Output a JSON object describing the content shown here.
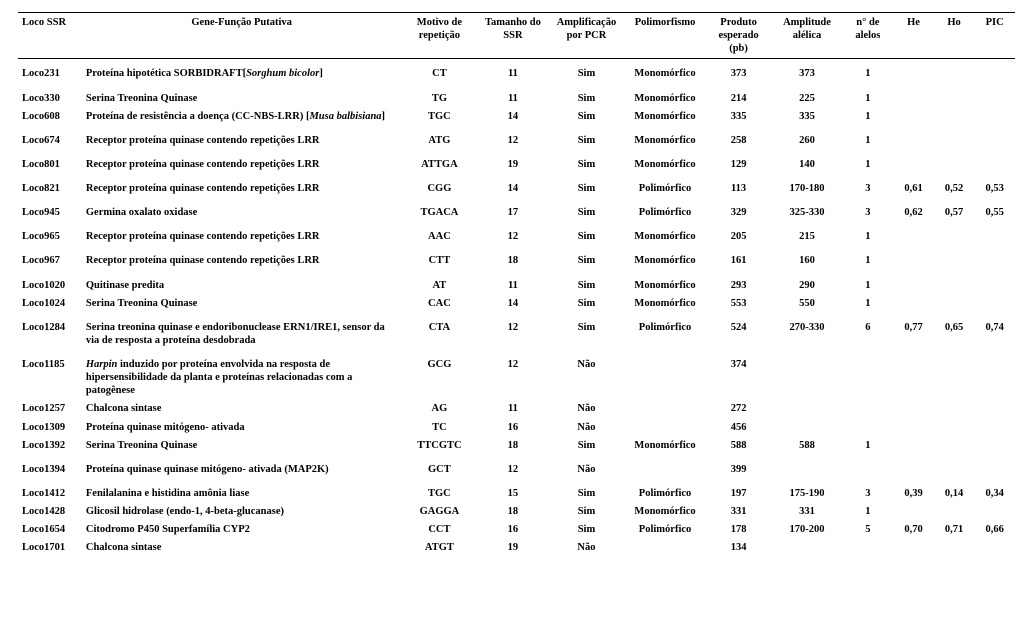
{
  "headers": {
    "loco": "Loco SSR",
    "gene": "Gene-Função Putativa",
    "motivo": "Motivo de repetição",
    "tamanho": "Tamanho do SSR",
    "amplif": "Amplificação por PCR",
    "polimorf": "Polimorfismo",
    "produto": "Produto esperado (pb)",
    "amplitude": "Amplitude alélica",
    "nalelos": "n° de alelos",
    "he": "He",
    "ho": "Ho",
    "pic": "PIC"
  },
  "rows": [
    {
      "loco": "Loco231",
      "gene_html": "Proteína hipotética SORBIDRAFT[<span class='ital'>Sorghum bicolor</span>]",
      "motivo": "CT",
      "tamanho": "11",
      "amplif": "Sim",
      "polimorf": "Monomórfico",
      "produto": "373",
      "amplitude": "373",
      "nalelos": "1",
      "he": "",
      "ho": "",
      "pic": "",
      "spaced": true
    },
    {
      "loco": "Loco330",
      "gene_html": "Serina Treonina Quinase",
      "motivo": "TG",
      "tamanho": "11",
      "amplif": "Sim",
      "polimorf": "Monomórfico",
      "produto": "214",
      "amplitude": "225",
      "nalelos": "1",
      "he": "",
      "ho": "",
      "pic": "",
      "spaced": true
    },
    {
      "loco": "Loco608",
      "gene_html": "Proteína de resistência a doença (CC-NBS-LRR) [<span class='ital'>Musa balbisiana</span>]",
      "motivo": "TGC",
      "tamanho": "14",
      "amplif": "Sim",
      "polimorf": "Monomórfico",
      "produto": "335",
      "amplitude": "335",
      "nalelos": "1",
      "he": "",
      "ho": "",
      "pic": ""
    },
    {
      "loco": "Loco674",
      "gene_html": "Receptor proteína quinase contendo repetições LRR",
      "motivo": "ATG",
      "tamanho": "12",
      "amplif": "Sim",
      "polimorf": "Monomórfico",
      "produto": "258",
      "amplitude": "260",
      "nalelos": "1",
      "he": "",
      "ho": "",
      "pic": "",
      "spaced": true
    },
    {
      "loco": "Loco801",
      "gene_html": "Receptor proteína quinase contendo repetições LRR",
      "motivo": "ATTGA",
      "tamanho": "19",
      "amplif": "Sim",
      "polimorf": "Monomórfico",
      "produto": "129",
      "amplitude": "140",
      "nalelos": "1",
      "he": "",
      "ho": "",
      "pic": "",
      "spaced": true
    },
    {
      "loco": "Loco821",
      "gene_html": "Receptor proteína quinase contendo repetições LRR",
      "motivo": "CGG",
      "tamanho": "14",
      "amplif": "Sim",
      "polimorf": "Polimórfico",
      "produto": "113",
      "amplitude": "170-180",
      "nalelos": "3",
      "he": "0,61",
      "ho": "0,52",
      "pic": "0,53",
      "spaced": true
    },
    {
      "loco": "Loco945",
      "gene_html": "Germina oxalato oxidase",
      "motivo": "TGACA",
      "tamanho": "17",
      "amplif": "Sim",
      "polimorf": "Polimórfico",
      "produto": "329",
      "amplitude": "325-330",
      "nalelos": "3",
      "he": "0,62",
      "ho": "0,57",
      "pic": "0,55",
      "spaced": true
    },
    {
      "loco": "Loco965",
      "gene_html": "Receptor proteína quinase contendo repetições LRR",
      "motivo": "AAC",
      "tamanho": "12",
      "amplif": "Sim",
      "polimorf": "Monomórfico",
      "produto": "205",
      "amplitude": "215",
      "nalelos": "1",
      "he": "",
      "ho": "",
      "pic": "",
      "spaced": true
    },
    {
      "loco": "Loco967",
      "gene_html": "Receptor proteína quinase contendo repetições LRR",
      "motivo": "CTT",
      "tamanho": "18",
      "amplif": "Sim",
      "polimorf": "Monomórfico",
      "produto": "161",
      "amplitude": "160",
      "nalelos": "1",
      "he": "",
      "ho": "",
      "pic": "",
      "spaced": true
    },
    {
      "loco": "Loco1020",
      "gene_html": "Quitinase predita",
      "motivo": "AT",
      "tamanho": "11",
      "amplif": "Sim",
      "polimorf": "Monomórfico",
      "produto": "293",
      "amplitude": "290",
      "nalelos": "1",
      "he": "",
      "ho": "",
      "pic": "",
      "spaced": true
    },
    {
      "loco": "Loco1024",
      "gene_html": "Serina Treonina Quinase",
      "motivo": "CAC",
      "tamanho": "14",
      "amplif": "Sim",
      "polimorf": "Monomórfico",
      "produto": "553",
      "amplitude": "550",
      "nalelos": "1",
      "he": "",
      "ho": "",
      "pic": ""
    },
    {
      "loco": "Loco1284",
      "gene_html": "Serina  treonina quinase e endoribonuclease ERN1/IRE1, sensor da via de resposta a proteína desdobrada",
      "motivo": "CTA",
      "tamanho": "12",
      "amplif": "Sim",
      "polimorf": "Polimórfico",
      "produto": "524",
      "amplitude": "270-330",
      "nalelos": "6",
      "he": "0,77",
      "ho": "0,65",
      "pic": "0,74",
      "spaced": true
    },
    {
      "loco": "Loco1185",
      "gene_html": "<span class='ital'>Harpin</span> induzido por proteína envolvida na resposta de hipersensibilidade da planta e proteínas relacionadas com a patogênese",
      "motivo": "GCG",
      "tamanho": "12",
      "amplif": "Não",
      "polimorf": "",
      "produto": "374",
      "amplitude": "",
      "nalelos": "",
      "he": "",
      "ho": "",
      "pic": "",
      "spaced": true
    },
    {
      "loco": "Loco1257",
      "gene_html": "Chalcona sintase",
      "motivo": "AG",
      "tamanho": "11",
      "amplif": "Não",
      "polimorf": "",
      "produto": "272",
      "amplitude": "",
      "nalelos": "",
      "he": "",
      "ho": "",
      "pic": ""
    },
    {
      "loco": "Loco1309",
      "gene_html": "Proteína quinase mitógeno- ativada",
      "motivo": "TC",
      "tamanho": "16",
      "amplif": "Não",
      "polimorf": "",
      "produto": "456",
      "amplitude": "",
      "nalelos": "",
      "he": "",
      "ho": "",
      "pic": ""
    },
    {
      "loco": "Loco1392",
      "gene_html": "Serina Treonina Quinase",
      "motivo": "TTCGTC",
      "tamanho": "18",
      "amplif": "Sim",
      "polimorf": "Monomórfico",
      "produto": "588",
      "amplitude": "588",
      "nalelos": "1",
      "he": "",
      "ho": "",
      "pic": ""
    },
    {
      "loco": "Loco1394",
      "gene_html": "Proteína quinase quinase mitógeno- ativada  (MAP2K)",
      "motivo": "GCT",
      "tamanho": "12",
      "amplif": "Não",
      "polimorf": "",
      "produto": "399",
      "amplitude": "",
      "nalelos": "",
      "he": "",
      "ho": "",
      "pic": "",
      "spaced": true
    },
    {
      "loco": "Loco1412",
      "gene_html": "Fenilalanina e histidina amônia liase",
      "motivo": "TGC",
      "tamanho": "15",
      "amplif": "Sim",
      "polimorf": "Polimórfico",
      "produto": "197",
      "amplitude": "175-190",
      "nalelos": "3",
      "he": "0,39",
      "ho": "0,14",
      "pic": "0,34",
      "spaced": true
    },
    {
      "loco": "Loco1428",
      "gene_html": "Glicosil hidrolase (endo-1, 4-beta-glucanase)",
      "motivo": "GAGGA",
      "tamanho": "18",
      "amplif": "Sim",
      "polimorf": "Monomórfico",
      "produto": "331",
      "amplitude": "331",
      "nalelos": "1",
      "he": "",
      "ho": "",
      "pic": ""
    },
    {
      "loco": "Loco1654",
      "gene_html": "Citodromo P450 Superfamília CYP2",
      "motivo": "CCT",
      "tamanho": "16",
      "amplif": "Sim",
      "polimorf": "Polimórfico",
      "produto": "178",
      "amplitude": "170-200",
      "nalelos": "5",
      "he": "0,70",
      "ho": "0,71",
      "pic": "0,66"
    },
    {
      "loco": "Loco1701",
      "gene_html": "Chalcona sintase",
      "motivo": "ATGT",
      "tamanho": "19",
      "amplif": "Não",
      "polimorf": "",
      "produto": "134",
      "amplitude": "",
      "nalelos": "",
      "he": "",
      "ho": "",
      "pic": ""
    }
  ]
}
